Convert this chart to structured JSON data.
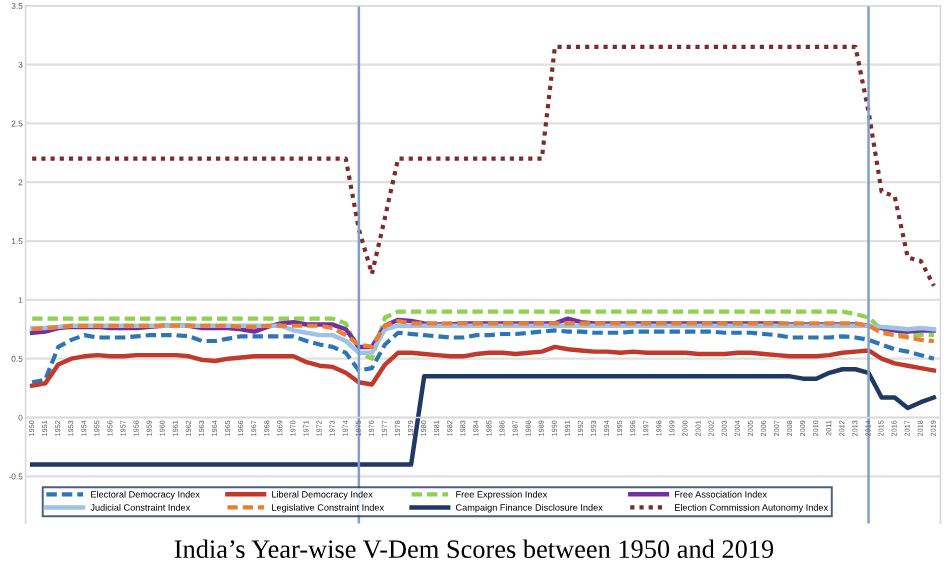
{
  "chart_data": {
    "type": "line",
    "title": "India’s Year-wise V-Dem Scores between 1950 and 2019",
    "x": [
      1950,
      1951,
      1952,
      1953,
      1954,
      1955,
      1956,
      1957,
      1958,
      1959,
      1960,
      1961,
      1962,
      1963,
      1964,
      1965,
      1966,
      1967,
      1968,
      1969,
      1970,
      1971,
      1972,
      1973,
      1974,
      1975,
      1976,
      1977,
      1978,
      1979,
      1980,
      1981,
      1982,
      1983,
      1984,
      1985,
      1986,
      1987,
      1988,
      1989,
      1990,
      1991,
      1992,
      1993,
      1994,
      1995,
      1996,
      1997,
      1998,
      1999,
      2000,
      2001,
      2002,
      2003,
      2004,
      2005,
      2006,
      2007,
      2008,
      2009,
      2010,
      2011,
      2012,
      2013,
      2014,
      2015,
      2016,
      2017,
      2018,
      2019
    ],
    "xlim": [
      1949.5,
      2019.5
    ],
    "xticks": [
      1950,
      1951,
      1952,
      1953,
      1954,
      1955,
      1956,
      1957,
      1958,
      1959,
      1960,
      1961,
      1962,
      1963,
      1964,
      1965,
      1966,
      1967,
      1968,
      1969,
      1970,
      1971,
      1972,
      1973,
      1974,
      1975,
      1976,
      1977,
      1978,
      1979,
      1980,
      1981,
      1982,
      1983,
      1984,
      1985,
      1986,
      1987,
      1988,
      1989,
      1990,
      1991,
      1992,
      1993,
      1994,
      1995,
      1996,
      1997,
      1998,
      1999,
      2000,
      2001,
      2002,
      2003,
      2004,
      2005,
      2006,
      2007,
      2008,
      2009,
      2010,
      2011,
      2012,
      2013,
      2014,
      2015,
      2016,
      2017,
      2018,
      2019
    ],
    "ylim": [
      -0.9,
      3.5
    ],
    "yticks": [
      -0.5,
      0,
      0.5,
      1,
      1.5,
      2,
      2.5,
      3,
      3.5
    ],
    "grid": "y",
    "legend": "bottom",
    "ref_lines": [
      {
        "axis": "x",
        "value": 1975,
        "color": "#7f9fd0"
      },
      {
        "axis": "x",
        "value": 2014,
        "color": "#7f9fd0"
      }
    ],
    "series": [
      {
        "name": "Electoral Democracy Index",
        "color": "#2e75b6",
        "line_style": "dashed",
        "values": [
          0.3,
          0.32,
          0.6,
          0.66,
          0.7,
          0.68,
          0.68,
          0.68,
          0.69,
          0.7,
          0.7,
          0.7,
          0.69,
          0.65,
          0.65,
          0.67,
          0.69,
          0.69,
          0.69,
          0.69,
          0.69,
          0.65,
          0.62,
          0.6,
          0.55,
          0.4,
          0.42,
          0.62,
          0.72,
          0.71,
          0.7,
          0.69,
          0.68,
          0.68,
          0.7,
          0.7,
          0.71,
          0.71,
          0.72,
          0.73,
          0.74,
          0.73,
          0.73,
          0.72,
          0.72,
          0.72,
          0.73,
          0.73,
          0.73,
          0.73,
          0.73,
          0.73,
          0.73,
          0.72,
          0.72,
          0.72,
          0.71,
          0.7,
          0.68,
          0.68,
          0.68,
          0.68,
          0.69,
          0.68,
          0.66,
          0.62,
          0.58,
          0.56,
          0.53,
          0.5
        ]
      },
      {
        "name": "Liberal Democracy Index",
        "color": "#c0392b",
        "line_style": "solid",
        "values": [
          0.27,
          0.29,
          0.45,
          0.5,
          0.52,
          0.53,
          0.52,
          0.52,
          0.53,
          0.53,
          0.53,
          0.53,
          0.52,
          0.49,
          0.48,
          0.5,
          0.51,
          0.52,
          0.52,
          0.52,
          0.52,
          0.47,
          0.44,
          0.43,
          0.38,
          0.3,
          0.28,
          0.45,
          0.55,
          0.55,
          0.54,
          0.53,
          0.52,
          0.52,
          0.54,
          0.55,
          0.55,
          0.54,
          0.55,
          0.56,
          0.6,
          0.58,
          0.57,
          0.56,
          0.56,
          0.55,
          0.56,
          0.55,
          0.55,
          0.55,
          0.55,
          0.54,
          0.54,
          0.54,
          0.55,
          0.55,
          0.54,
          0.53,
          0.52,
          0.52,
          0.52,
          0.53,
          0.55,
          0.56,
          0.57,
          0.5,
          0.46,
          0.44,
          0.42,
          0.4
        ]
      },
      {
        "name": "Free Expression Index",
        "color": "#92d050",
        "line_style": "dashed",
        "values": [
          0.84,
          0.84,
          0.84,
          0.84,
          0.84,
          0.84,
          0.84,
          0.84,
          0.84,
          0.84,
          0.84,
          0.84,
          0.84,
          0.84,
          0.84,
          0.84,
          0.84,
          0.84,
          0.84,
          0.84,
          0.84,
          0.84,
          0.84,
          0.84,
          0.8,
          0.55,
          0.5,
          0.85,
          0.9,
          0.9,
          0.9,
          0.9,
          0.9,
          0.9,
          0.9,
          0.9,
          0.9,
          0.9,
          0.9,
          0.9,
          0.9,
          0.9,
          0.9,
          0.9,
          0.9,
          0.9,
          0.9,
          0.9,
          0.9,
          0.9,
          0.9,
          0.9,
          0.9,
          0.9,
          0.9,
          0.9,
          0.9,
          0.9,
          0.9,
          0.9,
          0.9,
          0.9,
          0.9,
          0.88,
          0.85,
          0.75,
          0.72,
          0.7,
          0.7,
          0.7
        ]
      },
      {
        "name": "Free Association Index",
        "color": "#7030a0",
        "line_style": "solid",
        "values": [
          0.72,
          0.73,
          0.76,
          0.77,
          0.77,
          0.77,
          0.76,
          0.76,
          0.76,
          0.77,
          0.78,
          0.78,
          0.78,
          0.76,
          0.76,
          0.76,
          0.75,
          0.73,
          0.77,
          0.8,
          0.81,
          0.79,
          0.79,
          0.79,
          0.75,
          0.6,
          0.6,
          0.78,
          0.83,
          0.82,
          0.8,
          0.79,
          0.79,
          0.8,
          0.8,
          0.8,
          0.8,
          0.8,
          0.8,
          0.8,
          0.8,
          0.84,
          0.81,
          0.8,
          0.8,
          0.8,
          0.8,
          0.8,
          0.8,
          0.8,
          0.8,
          0.8,
          0.8,
          0.8,
          0.8,
          0.8,
          0.8,
          0.8,
          0.79,
          0.79,
          0.79,
          0.79,
          0.79,
          0.79,
          0.78,
          0.76,
          0.74,
          0.73,
          0.74,
          0.74
        ]
      },
      {
        "name": "Judicial Constraint Index",
        "color": "#9dc3e6",
        "line_style": "solid",
        "values": [
          0.76,
          0.76,
          0.77,
          0.78,
          0.78,
          0.78,
          0.78,
          0.78,
          0.78,
          0.78,
          0.78,
          0.78,
          0.78,
          0.78,
          0.78,
          0.78,
          0.78,
          0.78,
          0.78,
          0.78,
          0.74,
          0.72,
          0.7,
          0.7,
          0.65,
          0.55,
          0.55,
          0.75,
          0.78,
          0.78,
          0.78,
          0.78,
          0.78,
          0.78,
          0.78,
          0.78,
          0.78,
          0.78,
          0.78,
          0.78,
          0.78,
          0.78,
          0.78,
          0.78,
          0.78,
          0.78,
          0.78,
          0.78,
          0.78,
          0.78,
          0.78,
          0.78,
          0.78,
          0.78,
          0.78,
          0.78,
          0.78,
          0.78,
          0.78,
          0.78,
          0.78,
          0.78,
          0.78,
          0.78,
          0.78,
          0.77,
          0.76,
          0.75,
          0.76,
          0.75
        ]
      },
      {
        "name": "Legislative Constraint Index",
        "color": "#ed7d31",
        "line_style": "dashed",
        "values": [
          0.75,
          0.76,
          0.77,
          0.78,
          0.78,
          0.78,
          0.78,
          0.78,
          0.78,
          0.78,
          0.78,
          0.78,
          0.78,
          0.78,
          0.78,
          0.78,
          0.77,
          0.77,
          0.78,
          0.78,
          0.78,
          0.78,
          0.78,
          0.76,
          0.7,
          0.62,
          0.6,
          0.78,
          0.82,
          0.8,
          0.8,
          0.8,
          0.8,
          0.8,
          0.8,
          0.8,
          0.8,
          0.8,
          0.8,
          0.8,
          0.8,
          0.8,
          0.8,
          0.8,
          0.8,
          0.8,
          0.8,
          0.8,
          0.8,
          0.8,
          0.8,
          0.8,
          0.8,
          0.8,
          0.8,
          0.8,
          0.8,
          0.8,
          0.8,
          0.8,
          0.8,
          0.8,
          0.8,
          0.8,
          0.78,
          0.72,
          0.7,
          0.68,
          0.66,
          0.65
        ]
      },
      {
        "name": "Campaign Finance Disclosure Index",
        "color": "#1f3864",
        "line_style": "solid",
        "values": [
          -0.4,
          -0.4,
          -0.4,
          -0.4,
          -0.4,
          -0.4,
          -0.4,
          -0.4,
          -0.4,
          -0.4,
          -0.4,
          -0.4,
          -0.4,
          -0.4,
          -0.4,
          -0.4,
          -0.4,
          -0.4,
          -0.4,
          -0.4,
          -0.4,
          -0.4,
          -0.4,
          -0.4,
          -0.4,
          -0.4,
          -0.4,
          -0.4,
          -0.4,
          -0.4,
          0.35,
          0.35,
          0.35,
          0.35,
          0.35,
          0.35,
          0.35,
          0.35,
          0.35,
          0.35,
          0.35,
          0.35,
          0.35,
          0.35,
          0.35,
          0.35,
          0.35,
          0.35,
          0.35,
          0.35,
          0.35,
          0.35,
          0.35,
          0.35,
          0.35,
          0.35,
          0.35,
          0.35,
          0.35,
          0.33,
          0.33,
          0.38,
          0.41,
          0.41,
          0.38,
          0.17,
          0.17,
          0.08,
          0.13,
          0.17
        ]
      },
      {
        "name": "Election Commission Autonomy Index",
        "color": "#7b2c2c",
        "line_style": "dotted",
        "values": [
          2.2,
          2.2,
          2.2,
          2.2,
          2.2,
          2.2,
          2.2,
          2.2,
          2.2,
          2.2,
          2.2,
          2.2,
          2.2,
          2.2,
          2.2,
          2.2,
          2.2,
          2.2,
          2.2,
          2.2,
          2.2,
          2.2,
          2.2,
          2.2,
          2.2,
          1.6,
          1.22,
          1.7,
          2.2,
          2.2,
          2.2,
          2.2,
          2.2,
          2.2,
          2.2,
          2.2,
          2.2,
          2.2,
          2.2,
          2.2,
          3.15,
          3.15,
          3.15,
          3.15,
          3.15,
          3.15,
          3.15,
          3.15,
          3.15,
          3.15,
          3.15,
          3.15,
          3.15,
          3.15,
          3.15,
          3.15,
          3.15,
          3.15,
          3.15,
          3.15,
          3.15,
          3.15,
          3.15,
          3.15,
          2.6,
          1.92,
          1.88,
          1.36,
          1.33,
          1.12
        ]
      }
    ]
  }
}
